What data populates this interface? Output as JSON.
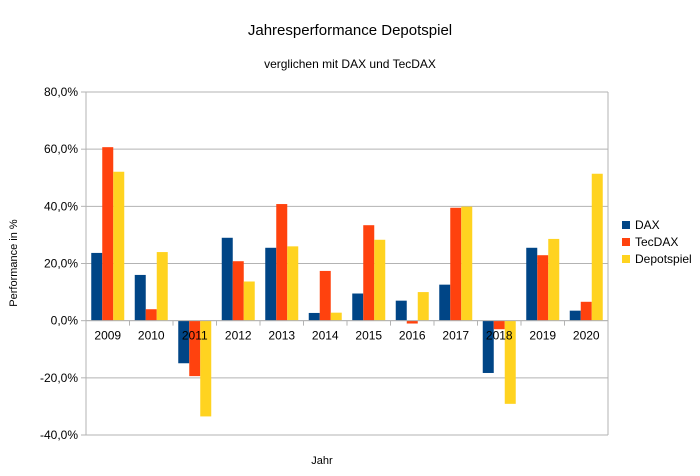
{
  "chart_data": {
    "type": "bar",
    "title": "Jahresperformance Depotspiel",
    "subtitle": "verglichen mit DAX und TecDAX",
    "xlabel": "Jahr",
    "ylabel": "Performance in %",
    "ylim": [
      -40,
      80
    ],
    "yticks": [
      80,
      60,
      40,
      20,
      0,
      -20,
      -40
    ],
    "ytick_labels": [
      "80,0%",
      "60,0%",
      "40,0%",
      "20,0%",
      "0,0%",
      "-20,0%",
      "-40,0%"
    ],
    "grid": true,
    "legend": "right",
    "categories": [
      "2009",
      "2010",
      "2011",
      "2012",
      "2013",
      "2014",
      "2015",
      "2016",
      "2017",
      "2018",
      "2019",
      "2020"
    ],
    "series": [
      {
        "name": "DAX",
        "color": "#004586",
        "values": [
          23.7,
          16.0,
          -14.9,
          29.0,
          25.5,
          2.7,
          9.5,
          7.0,
          12.6,
          -18.3,
          25.5,
          3.5
        ]
      },
      {
        "name": "TecDAX",
        "color": "#ff420e",
        "values": [
          60.7,
          4.0,
          -19.4,
          20.8,
          40.8,
          17.4,
          33.4,
          -1.0,
          39.5,
          -3.0,
          22.9,
          6.6
        ]
      },
      {
        "name": "Depotspiel",
        "color": "#ffd320",
        "values": [
          52.1,
          24.0,
          -33.5,
          13.7,
          26.0,
          2.8,
          28.3,
          10.0,
          39.9,
          -29.1,
          28.6,
          51.4
        ]
      }
    ]
  }
}
